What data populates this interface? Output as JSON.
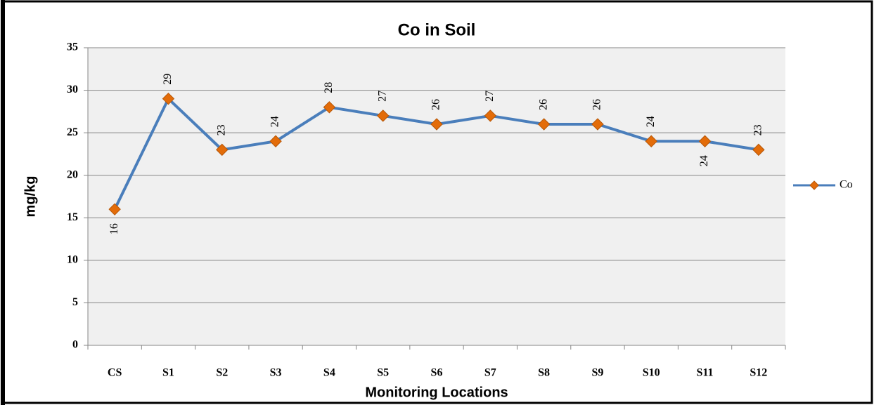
{
  "chart_data": {
    "type": "line",
    "title": "Co in Soil",
    "x_label": "Monitoring Locations",
    "y_label": "mg/kg",
    "categories": [
      "CS",
      "S1",
      "S2",
      "S3",
      "S4",
      "S5",
      "S6",
      "S7",
      "S8",
      "S9",
      "S10",
      "S11",
      "S12"
    ],
    "series": [
      {
        "name": "Co",
        "color": "#4a7ebb",
        "marker_color": "#e36c09",
        "values": [
          16,
          29,
          23,
          24,
          28,
          27,
          26,
          27,
          26,
          26,
          24,
          24,
          23
        ]
      }
    ],
    "data_label_positions": [
      "below",
      "above",
      "above",
      "above",
      "above",
      "above",
      "above",
      "above",
      "above",
      "above",
      "above",
      "below",
      "above"
    ],
    "ylim": [
      0,
      35
    ],
    "yticks": [
      0,
      5,
      10,
      15,
      20,
      25,
      30,
      35
    ],
    "grid": true,
    "legend": "right"
  }
}
